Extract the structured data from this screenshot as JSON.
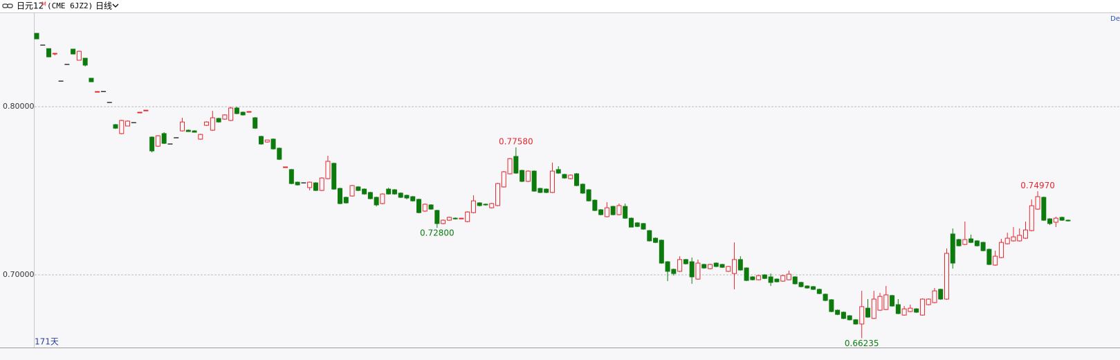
{
  "header": {
    "symbol": "日元12",
    "badge": "M",
    "contract": "(CME 6JZ2)",
    "period": "日线"
  },
  "chart_data": {
    "type": "candlestick",
    "corner_label": "De",
    "bar_count_label": "171天",
    "up_color": "#e8262c",
    "down_color": "#0d7a0d",
    "flat_color": "#000000",
    "ylim": [
      0.6568,
      0.856
    ],
    "yticks": [
      {
        "value": 0.7,
        "label": "0.70000"
      },
      {
        "value": 0.8,
        "label": "0.80000"
      }
    ],
    "grid": true,
    "annotations": [
      {
        "label": "0.72800",
        "value": 0.728,
        "color": "#0d7a0d"
      },
      {
        "label": "0.77580",
        "value": 0.7758,
        "color": "#e8262c"
      },
      {
        "label": "0.66235",
        "value": 0.66235,
        "color": "#0d7a0d"
      },
      {
        "label": "0.74970",
        "value": 0.7497,
        "color": "#e8262c"
      }
    ],
    "candles": [
      [
        0.8436,
        0.8436,
        0.8403,
        0.8403
      ],
      [
        0.8366,
        0.8366,
        0.8366,
        0.8366
      ],
      [
        0.8345,
        0.8345,
        0.8296,
        0.8296
      ],
      [
        0.8313,
        0.8317,
        0.8305,
        0.8317
      ],
      [
        0.8152,
        0.8152,
        0.8152,
        0.8152
      ],
      [
        0.8251,
        0.8251,
        0.8251,
        0.8251
      ],
      [
        0.8342,
        0.8342,
        0.8313,
        0.8313
      ],
      [
        0.8276,
        0.8333,
        0.8276,
        0.8329
      ],
      [
        0.8288,
        0.8288,
        0.8239,
        0.8247
      ],
      [
        0.8169,
        0.8169,
        0.8148,
        0.8148
      ],
      [
        0.8086,
        0.809,
        0.8086,
        0.809
      ],
      [
        0.809,
        0.809,
        0.809,
        0.809
      ],
      [
        0.8025,
        0.8025,
        0.8025,
        0.8025
      ],
      [
        0.7893,
        0.7897,
        0.7868,
        0.7872
      ],
      [
        0.784,
        0.7922,
        0.7836,
        0.7918
      ],
      [
        0.7885,
        0.7918,
        0.7885,
        0.7914
      ],
      [
        0.7905,
        0.7905,
        0.7905,
        0.7905
      ],
      [
        0.7963,
        0.7967,
        0.7963,
        0.7967
      ],
      [
        0.7977,
        0.7979,
        0.7977,
        0.7979
      ],
      [
        0.7819,
        0.7823,
        0.7728,
        0.7737
      ],
      [
        0.7765,
        0.7831,
        0.7761,
        0.7827
      ],
      [
        0.784,
        0.7848,
        0.7778,
        0.7782
      ],
      [
        0.7778,
        0.7778,
        0.7778,
        0.7778
      ],
      [
        0.7815,
        0.7815,
        0.7815,
        0.7815
      ],
      [
        0.7856,
        0.7934,
        0.7852,
        0.7909
      ],
      [
        0.786,
        0.7864,
        0.7852,
        0.7852
      ],
      [
        0.7856,
        0.786,
        0.7848,
        0.7848
      ],
      [
        0.7807,
        0.7839,
        0.7803,
        0.7835
      ],
      [
        0.7889,
        0.7913,
        0.7885,
        0.7909
      ],
      [
        0.786,
        0.7975,
        0.7856,
        0.7934
      ],
      [
        0.793,
        0.7934,
        0.7905,
        0.7909
      ],
      [
        0.7926,
        0.7955,
        0.7922,
        0.7951
      ],
      [
        0.7918,
        0.8,
        0.7914,
        0.7992
      ],
      [
        0.7992,
        0.8,
        0.7955,
        0.7959
      ],
      [
        0.7967,
        0.7971,
        0.7947,
        0.7951
      ],
      [
        0.7969,
        0.7971,
        0.7969,
        0.7971
      ],
      [
        0.7934,
        0.7938,
        0.7868,
        0.7872
      ],
      [
        0.7823,
        0.7827,
        0.7774,
        0.7778
      ],
      [
        0.779,
        0.7802,
        0.7786,
        0.7802
      ],
      [
        0.7807,
        0.7811,
        0.7745,
        0.7749
      ],
      [
        0.7753,
        0.7757,
        0.7683,
        0.7687
      ],
      [
        0.7638,
        0.7642,
        0.7638,
        0.7642
      ],
      [
        0.7626,
        0.763,
        0.7539,
        0.7543
      ],
      [
        0.7551,
        0.7555,
        0.7531,
        0.7535
      ],
      [
        0.7547,
        0.7547,
        0.7547,
        0.7547
      ],
      [
        0.7519,
        0.7555,
        0.7502,
        0.7551
      ],
      [
        0.7547,
        0.7551,
        0.7498,
        0.7502
      ],
      [
        0.7502,
        0.758,
        0.7498,
        0.7576
      ],
      [
        0.7572,
        0.7708,
        0.7568,
        0.7675
      ],
      [
        0.7663,
        0.7667,
        0.7506,
        0.751
      ],
      [
        0.7514,
        0.7518,
        0.742,
        0.7424
      ],
      [
        0.7461,
        0.7465,
        0.7424,
        0.7428
      ],
      [
        0.7469,
        0.7535,
        0.7465,
        0.7531
      ],
      [
        0.7523,
        0.7527,
        0.7498,
        0.7502
      ],
      [
        0.751,
        0.7514,
        0.7477,
        0.7481
      ],
      [
        0.749,
        0.7494,
        0.7449,
        0.7453
      ],
      [
        0.7461,
        0.7465,
        0.7407,
        0.7416
      ],
      [
        0.7424,
        0.7485,
        0.742,
        0.7481
      ],
      [
        0.751,
        0.7518,
        0.7477,
        0.7481
      ],
      [
        0.7506,
        0.751,
        0.7477,
        0.7481
      ],
      [
        0.7486,
        0.749,
        0.7457,
        0.7461
      ],
      [
        0.7473,
        0.7477,
        0.7449,
        0.7457
      ],
      [
        0.7465,
        0.7469,
        0.7436,
        0.744
      ],
      [
        0.7449,
        0.7453,
        0.7366,
        0.737
      ],
      [
        0.7379,
        0.7424,
        0.7375,
        0.742
      ],
      [
        0.7416,
        0.742,
        0.7387,
        0.7391
      ],
      [
        0.7383,
        0.7387,
        0.728,
        0.7305
      ],
      [
        0.7305,
        0.7329,
        0.7301,
        0.7325
      ],
      [
        0.7325,
        0.7346,
        0.7321,
        0.7342
      ],
      [
        0.7337,
        0.7342,
        0.7329,
        0.7333
      ],
      [
        0.7333,
        0.7337,
        0.7333,
        0.7337
      ],
      [
        0.7317,
        0.7378,
        0.7313,
        0.7374
      ],
      [
        0.737,
        0.7473,
        0.7366,
        0.744
      ],
      [
        0.7428,
        0.7432,
        0.7407,
        0.7412
      ],
      [
        0.742,
        0.7424,
        0.7412,
        0.7416
      ],
      [
        0.7399,
        0.7428,
        0.7395,
        0.7424
      ],
      [
        0.7412,
        0.7547,
        0.7408,
        0.7543
      ],
      [
        0.7523,
        0.7617,
        0.7519,
        0.7613
      ],
      [
        0.7601,
        0.7695,
        0.7597,
        0.7691
      ],
      [
        0.7704,
        0.7758,
        0.7601,
        0.7605
      ],
      [
        0.7621,
        0.7625,
        0.7552,
        0.7556
      ],
      [
        0.7556,
        0.7621,
        0.7552,
        0.7617
      ],
      [
        0.7617,
        0.7621,
        0.7494,
        0.7498
      ],
      [
        0.7514,
        0.7518,
        0.7486,
        0.749
      ],
      [
        0.751,
        0.7514,
        0.7486,
        0.749
      ],
      [
        0.749,
        0.7667,
        0.7486,
        0.7617
      ],
      [
        0.7626,
        0.7646,
        0.7601,
        0.7605
      ],
      [
        0.7597,
        0.7601,
        0.7572,
        0.7576
      ],
      [
        0.7572,
        0.7597,
        0.7568,
        0.7593
      ],
      [
        0.7601,
        0.7605,
        0.7527,
        0.7531
      ],
      [
        0.7539,
        0.7543,
        0.7482,
        0.7486
      ],
      [
        0.7506,
        0.751,
        0.7436,
        0.744
      ],
      [
        0.7444,
        0.7448,
        0.7379,
        0.7383
      ],
      [
        0.7387,
        0.7391,
        0.7354,
        0.7358
      ],
      [
        0.7346,
        0.7432,
        0.7342,
        0.7399
      ],
      [
        0.7407,
        0.7411,
        0.7354,
        0.7358
      ],
      [
        0.7358,
        0.7424,
        0.7354,
        0.7412
      ],
      [
        0.7407,
        0.7424,
        0.7333,
        0.7337
      ],
      [
        0.7337,
        0.7341,
        0.7282,
        0.7284
      ],
      [
        0.7309,
        0.7313,
        0.7284,
        0.7288
      ],
      [
        0.7305,
        0.7309,
        0.7268,
        0.7272
      ],
      [
        0.7263,
        0.7267,
        0.7198,
        0.7202
      ],
      [
        0.7218,
        0.7222,
        0.7189,
        0.7193
      ],
      [
        0.7206,
        0.721,
        0.7066,
        0.707
      ],
      [
        0.7078,
        0.7082,
        0.6963,
        0.7021
      ],
      [
        0.7033,
        0.7037,
        0.6996,
        0.7008
      ],
      [
        0.7021,
        0.7111,
        0.7017,
        0.7091
      ],
      [
        0.7091,
        0.7095,
        0.7062,
        0.7066
      ],
      [
        0.7078,
        0.7103,
        0.6947,
        0.6988
      ],
      [
        0.6975,
        0.7091,
        0.6971,
        0.707
      ],
      [
        0.7062,
        0.7066,
        0.7037,
        0.7041
      ],
      [
        0.7037,
        0.7066,
        0.7033,
        0.7062
      ],
      [
        0.707,
        0.7074,
        0.7046,
        0.705
      ],
      [
        0.7062,
        0.7066,
        0.7041,
        0.7045
      ],
      [
        0.7021,
        0.7054,
        0.7017,
        0.705
      ],
      [
        0.7008,
        0.7193,
        0.6914,
        0.7091
      ],
      [
        0.7091,
        0.7111,
        0.7025,
        0.7029
      ],
      [
        0.7041,
        0.7045,
        0.6963,
        0.6967
      ],
      [
        0.6988,
        0.6992,
        0.6967,
        0.6971
      ],
      [
        0.6971,
        0.7,
        0.6967,
        0.6996
      ],
      [
        0.7,
        0.7004,
        0.6975,
        0.6979
      ],
      [
        0.6988,
        0.7008,
        0.6934,
        0.6955
      ],
      [
        0.6975,
        0.6979,
        0.6955,
        0.6959
      ],
      [
        0.6963,
        0.7,
        0.6959,
        0.6996
      ],
      [
        0.6971,
        0.7025,
        0.6967,
        0.7004
      ],
      [
        0.6988,
        0.6992,
        0.6943,
        0.6947
      ],
      [
        0.6955,
        0.6959,
        0.6926,
        0.693
      ],
      [
        0.6934,
        0.6938,
        0.6918,
        0.6922
      ],
      [
        0.693,
        0.6934,
        0.691,
        0.6914
      ],
      [
        0.6914,
        0.6918,
        0.6885,
        0.6889
      ],
      [
        0.6885,
        0.6889,
        0.6844,
        0.6848
      ],
      [
        0.6852,
        0.6856,
        0.6778,
        0.6782
      ],
      [
        0.679,
        0.6794,
        0.6761,
        0.6765
      ],
      [
        0.6778,
        0.6782,
        0.6737,
        0.6741
      ],
      [
        0.6757,
        0.6761,
        0.6729,
        0.6733
      ],
      [
        0.6733,
        0.6737,
        0.6704,
        0.6708
      ],
      [
        0.6708,
        0.6905,
        0.66235,
        0.6811
      ],
      [
        0.6802,
        0.6856,
        0.6745,
        0.6749
      ],
      [
        0.6741,
        0.6905,
        0.6737,
        0.6856
      ],
      [
        0.679,
        0.6893,
        0.6786,
        0.6872
      ],
      [
        0.6794,
        0.6934,
        0.679,
        0.6881
      ],
      [
        0.6877,
        0.6881,
        0.6811,
        0.6815
      ],
      [
        0.6823,
        0.6856,
        0.6766,
        0.677
      ],
      [
        0.6761,
        0.6815,
        0.6757,
        0.6798
      ],
      [
        0.6782,
        0.6823,
        0.6778,
        0.6802
      ],
      [
        0.6798,
        0.6802,
        0.6774,
        0.6778
      ],
      [
        0.6761,
        0.686,
        0.6757,
        0.6856
      ],
      [
        0.6823,
        0.686,
        0.6819,
        0.6856
      ],
      [
        0.6835,
        0.6922,
        0.6831,
        0.6905
      ],
      [
        0.6914,
        0.6918,
        0.6852,
        0.6856
      ],
      [
        0.6856,
        0.7157,
        0.6852,
        0.7128
      ],
      [
        0.7243,
        0.7276,
        0.7037,
        0.707
      ],
      [
        0.721,
        0.7214,
        0.7169,
        0.7173
      ],
      [
        0.7181,
        0.7317,
        0.7177,
        0.721
      ],
      [
        0.7214,
        0.7239,
        0.7189,
        0.7193
      ],
      [
        0.7202,
        0.7206,
        0.7169,
        0.7173
      ],
      [
        0.7193,
        0.7197,
        0.714,
        0.7144
      ],
      [
        0.7152,
        0.7156,
        0.7058,
        0.7062
      ],
      [
        0.7058,
        0.7144,
        0.7054,
        0.7111
      ],
      [
        0.7103,
        0.7214,
        0.7099,
        0.7193
      ],
      [
        0.7185,
        0.7251,
        0.7181,
        0.7218
      ],
      [
        0.7202,
        0.7284,
        0.7198,
        0.7226
      ],
      [
        0.7202,
        0.7276,
        0.7198,
        0.7235
      ],
      [
        0.7218,
        0.7317,
        0.7214,
        0.7267
      ],
      [
        0.7263,
        0.7448,
        0.7259,
        0.7411
      ],
      [
        0.7391,
        0.7497,
        0.7387,
        0.7465
      ],
      [
        0.7461,
        0.7465,
        0.7321,
        0.7325
      ],
      [
        0.7333,
        0.7337,
        0.7296,
        0.7305
      ],
      [
        0.7313,
        0.7346,
        0.7284,
        0.7337
      ],
      [
        0.7342,
        0.7346,
        0.7321,
        0.7325
      ],
      [
        0.7325,
        0.7329,
        0.7317,
        0.7321
      ]
    ]
  }
}
